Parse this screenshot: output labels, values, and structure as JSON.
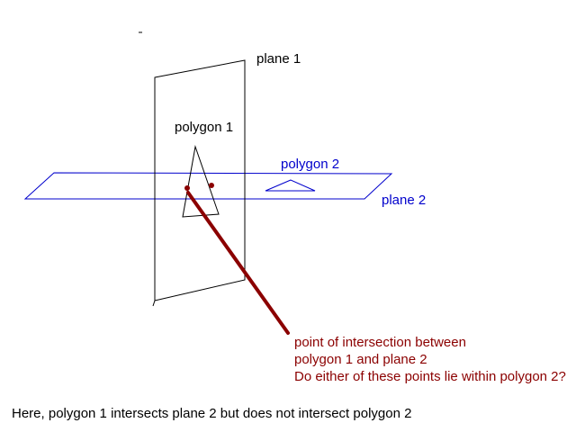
{
  "labels": {
    "plane1": "plane 1",
    "polygon1": "polygon 1",
    "polygon2": "polygon 2",
    "plane2": "plane 2"
  },
  "annotation": {
    "line1": "point of intersection between",
    "line2": "polygon 1 and plane 2",
    "line3": "Do either of these points lie within polygon 2?"
  },
  "caption": "Here, polygon 1 intersects plane 2 but does not intersect polygon 2",
  "colors": {
    "plane1": "#000000",
    "plane2": "#0000cc",
    "polygon2": "#0000cc",
    "pointer": "#8b0000",
    "intersection_points": "#8b0000"
  }
}
